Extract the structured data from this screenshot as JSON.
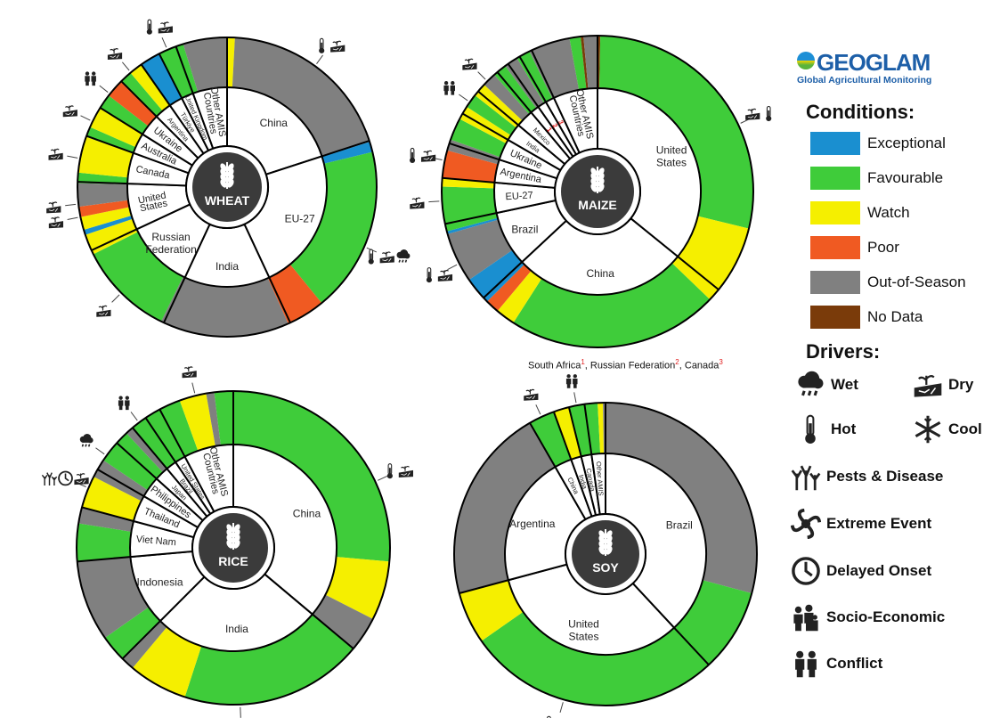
{
  "colors": {
    "Exceptional": "#1a8fd0",
    "Favourable": "#3fcc3a",
    "Watch": "#f5ef00",
    "Poor": "#f05a22",
    "Out-of-Season": "#808080",
    "No Data": "#7a3b0a"
  },
  "chart_data": [
    {
      "type": "pie",
      "crop": "WHEAT",
      "countries": [
        {
          "name": "China",
          "share": 72
        },
        {
          "name": "EU-27",
          "share": 83
        },
        {
          "name": "India",
          "share": 50
        },
        {
          "name": "Russian\nFederation",
          "share": 40
        },
        {
          "name": "United\nStates",
          "share": 27
        },
        {
          "name": "Canada",
          "share": 18
        },
        {
          "name": "Australia",
          "share": 12
        },
        {
          "name": "Ukraine",
          "share": 13
        },
        {
          "name": "Argentina",
          "share": 10
        },
        {
          "name": "Türkiye",
          "share": 8
        },
        {
          "name": "United Kingdom",
          "share": 7
        },
        {
          "name": "Other AMIS\nCountries",
          "share": 20
        }
      ],
      "conditions": [
        [
          "Watch",
          3
        ],
        [
          "Out-of-Season",
          69
        ],
        [
          "Exceptional",
          4
        ],
        [
          "Favourable",
          64
        ],
        [
          "Poor",
          15
        ],
        [
          "Out-of-Season",
          50
        ],
        [
          "Favourable",
          37
        ],
        [
          "Watch",
          8
        ],
        [
          "Exceptional",
          2
        ],
        [
          "Watch",
          5
        ],
        [
          "Poor",
          4
        ],
        [
          "Out-of-Season",
          9
        ],
        [
          "Favourable",
          4
        ],
        [
          "Watch",
          14
        ],
        [
          "Favourable",
          4
        ],
        [
          "Watch",
          8
        ],
        [
          "Favourable",
          6
        ],
        [
          "Poor",
          7
        ],
        [
          "Favourable",
          5
        ],
        [
          "Watch",
          5
        ],
        [
          "Exceptional",
          8
        ],
        [
          "Favourable",
          7
        ],
        [
          "Favourable",
          3
        ],
        [
          "Out-of-Season",
          17
        ]
      ],
      "drivers": [
        {
          "country": "China",
          "icons": [
            "hot",
            "dry"
          ]
        },
        {
          "country": "United Kingdom",
          "icons": [
            "hot",
            "dry"
          ]
        },
        {
          "country": "Argentina",
          "icons": [
            "dry"
          ]
        },
        {
          "country": "Ukraine",
          "icons": [
            "conflict"
          ]
        },
        {
          "country": "Australia",
          "icons": [
            "dry"
          ]
        },
        {
          "country": "Canada",
          "icons": [
            "dry"
          ]
        },
        {
          "country": "United\nStates",
          "icons": [
            "dry"
          ]
        },
        {
          "country": "United\nStates",
          "icons": [
            "dry"
          ]
        },
        {
          "country": "Russian\nFederation",
          "icons": [
            "dry"
          ]
        },
        {
          "country": "EU-27",
          "icons": [
            "hot",
            "dry",
            "wet"
          ]
        }
      ]
    },
    {
      "type": "pie",
      "crop": "MAIZE",
      "countries": [
        {
          "name": "United\nStates",
          "share": 129
        },
        {
          "name": "China",
          "share": 98
        },
        {
          "name": "Brazil",
          "share": 31
        },
        {
          "name": "EU-27",
          "share": 17
        },
        {
          "name": "Argentina",
          "share": 13
        },
        {
          "name": "Ukraine",
          "share": 12
        },
        {
          "name": "India",
          "share": 10
        },
        {
          "name": "Mexico",
          "share": 10
        },
        {
          "name": "1",
          "share": 5
        },
        {
          "name": "2",
          "share": 5
        },
        {
          "name": "3",
          "share": 5
        },
        {
          "name": "Other AMIS\nCountries",
          "share": 25
        }
      ],
      "conditions": [
        [
          "No Data",
          1
        ],
        [
          "Favourable",
          99
        ],
        [
          "Watch",
          29
        ],
        [
          "Favourable",
          76
        ],
        [
          "Watch",
          7
        ],
        [
          "Poor",
          5
        ],
        [
          "Exceptional",
          10
        ],
        [
          "Out-of-Season",
          18
        ],
        [
          "Exceptional",
          1
        ],
        [
          "Favourable",
          16
        ],
        [
          "Watch",
          3
        ],
        [
          "Poor",
          10
        ],
        [
          "Out-of-Season",
          4
        ],
        [
          "Favourable",
          8
        ],
        [
          "Watch",
          5
        ],
        [
          "Favourable",
          5
        ],
        [
          "Watch",
          5
        ],
        [
          "Out-of-Season",
          5
        ],
        [
          "Favourable",
          5
        ],
        [
          "Out-of-Season",
          5
        ],
        [
          "Favourable",
          5
        ],
        [
          "Out-of-Season",
          15
        ],
        [
          "Favourable",
          4
        ],
        [
          "No Data",
          1
        ],
        [
          "Out-of-Season",
          5
        ]
      ],
      "drivers": [
        {
          "country": "Mexico",
          "icons": [
            "dry"
          ]
        },
        {
          "country": "India",
          "icons": [
            "conflict"
          ]
        },
        {
          "country": "Argentina",
          "icons": [
            "hot",
            "dry"
          ]
        },
        {
          "country": "EU-27",
          "icons": [
            "dry"
          ]
        },
        {
          "country": "Brazil",
          "icons": [
            "hot",
            "dry"
          ]
        },
        {
          "country": "United\nStates",
          "icons": [
            "dry",
            "hot"
          ]
        }
      ]
    },
    {
      "type": "pie",
      "crop": "RICE",
      "countries": [
        {
          "name": "China",
          "share": 130
        },
        {
          "name": "India",
          "share": 95
        },
        {
          "name": "Indonesia",
          "share": 40
        },
        {
          "name": "Viet Nam",
          "share": 20
        },
        {
          "name": "Thailand",
          "share": 15
        },
        {
          "name": "Philippines",
          "share": 12
        },
        {
          "name": "Japan",
          "share": 8
        },
        {
          "name": "Brazil",
          "share": 6
        },
        {
          "name": "United States",
          "share": 6
        },
        {
          "name": "Other AMIS\nCountries",
          "share": 28
        }
      ],
      "conditions": [
        [
          "Favourable",
          95
        ],
        [
          "Watch",
          22
        ],
        [
          "Out-of-Season",
          13
        ],
        [
          "Favourable",
          68
        ],
        [
          "Watch",
          22
        ],
        [
          "Out-of-Season",
          5
        ],
        [
          "Favourable",
          10
        ],
        [
          "Out-of-Season",
          30
        ],
        [
          "Favourable",
          14
        ],
        [
          "Out-of-Season",
          6
        ],
        [
          "Watch",
          12
        ],
        [
          "Out-of-Season",
          3
        ],
        [
          "Out-of-Season",
          4
        ],
        [
          "Favourable",
          8
        ],
        [
          "Favourable",
          5
        ],
        [
          "Out-of-Season",
          3
        ],
        [
          "Favourable",
          6
        ],
        [
          "Favourable",
          6
        ],
        [
          "Favourable",
          8
        ],
        [
          "Watch",
          10
        ],
        [
          "Out-of-Season",
          3
        ],
        [
          "Favourable",
          7
        ]
      ],
      "drivers": [
        {
          "country": "Philippines",
          "icons": [
            "wet"
          ]
        },
        {
          "country": "Brazil",
          "icons": [
            "conflict"
          ]
        },
        {
          "country": "Other AMIS\nCountries",
          "icons": [
            "dry"
          ]
        },
        {
          "country": "Thailand",
          "icons": [
            "pests",
            "delayed",
            "dry"
          ]
        },
        {
          "country": "India",
          "icons": [
            "dry"
          ]
        },
        {
          "country": "China",
          "icons": [
            "hot",
            "dry"
          ]
        }
      ]
    },
    {
      "type": "pie",
      "crop": "SOY",
      "countries": [
        {
          "name": "Brazil",
          "share": 137
        },
        {
          "name": "United\nStates",
          "share": 118
        },
        {
          "name": "Argentina",
          "share": 75
        },
        {
          "name": "China",
          "share": 10
        },
        {
          "name": "India",
          "share": 6
        },
        {
          "name": "Canada",
          "share": 6
        },
        {
          "name": "Other AMIS",
          "share": 8
        }
      ],
      "conditions": [
        [
          "Out-of-Season",
          105
        ],
        [
          "Favourable",
          32
        ],
        [
          "Favourable",
          98
        ],
        [
          "Watch",
          20
        ],
        [
          "Out-of-Season",
          75
        ],
        [
          "Favourable",
          10
        ],
        [
          "Watch",
          6
        ],
        [
          "Favourable",
          6
        ],
        [
          "Favourable",
          5
        ],
        [
          "Watch",
          2
        ],
        [
          "Out-of-Season",
          1
        ]
      ],
      "drivers": [
        {
          "country": "China",
          "icons": [
            "dry"
          ]
        },
        {
          "country": "Canada",
          "icons": [
            "conflict"
          ]
        },
        {
          "country": "United\nStates",
          "icons": [
            "hot",
            "dry"
          ]
        }
      ]
    }
  ],
  "logo": {
    "word": "GEOGLAM",
    "sub": "Global Agricultural Monitoring"
  },
  "legend": {
    "conditions_title": "Conditions:",
    "conditions": [
      "Exceptional",
      "Favourable",
      "Watch",
      "Poor",
      "Out-of-Season",
      "No Data"
    ],
    "drivers_title": "Drivers:",
    "drivers": [
      {
        "key": "wet",
        "label": "Wet"
      },
      {
        "key": "dry",
        "label": "Dry"
      },
      {
        "key": "hot",
        "label": "Hot"
      },
      {
        "key": "cool",
        "label": "Cool"
      },
      {
        "key": "pests",
        "label": "Pests & Disease"
      },
      {
        "key": "extreme",
        "label": "Extreme Event"
      },
      {
        "key": "delayed",
        "label": "Delayed Onset"
      },
      {
        "key": "socio",
        "label": "Socio-Economic"
      },
      {
        "key": "conflict",
        "label": "Conflict"
      }
    ]
  },
  "footnote": [
    {
      "name": "South Africa",
      "num": "1",
      "sep": ", "
    },
    {
      "name": "Russian Federation",
      "num": "2",
      "sep": ", "
    },
    {
      "name": "Canada",
      "num": "3",
      "sep": ""
    }
  ]
}
